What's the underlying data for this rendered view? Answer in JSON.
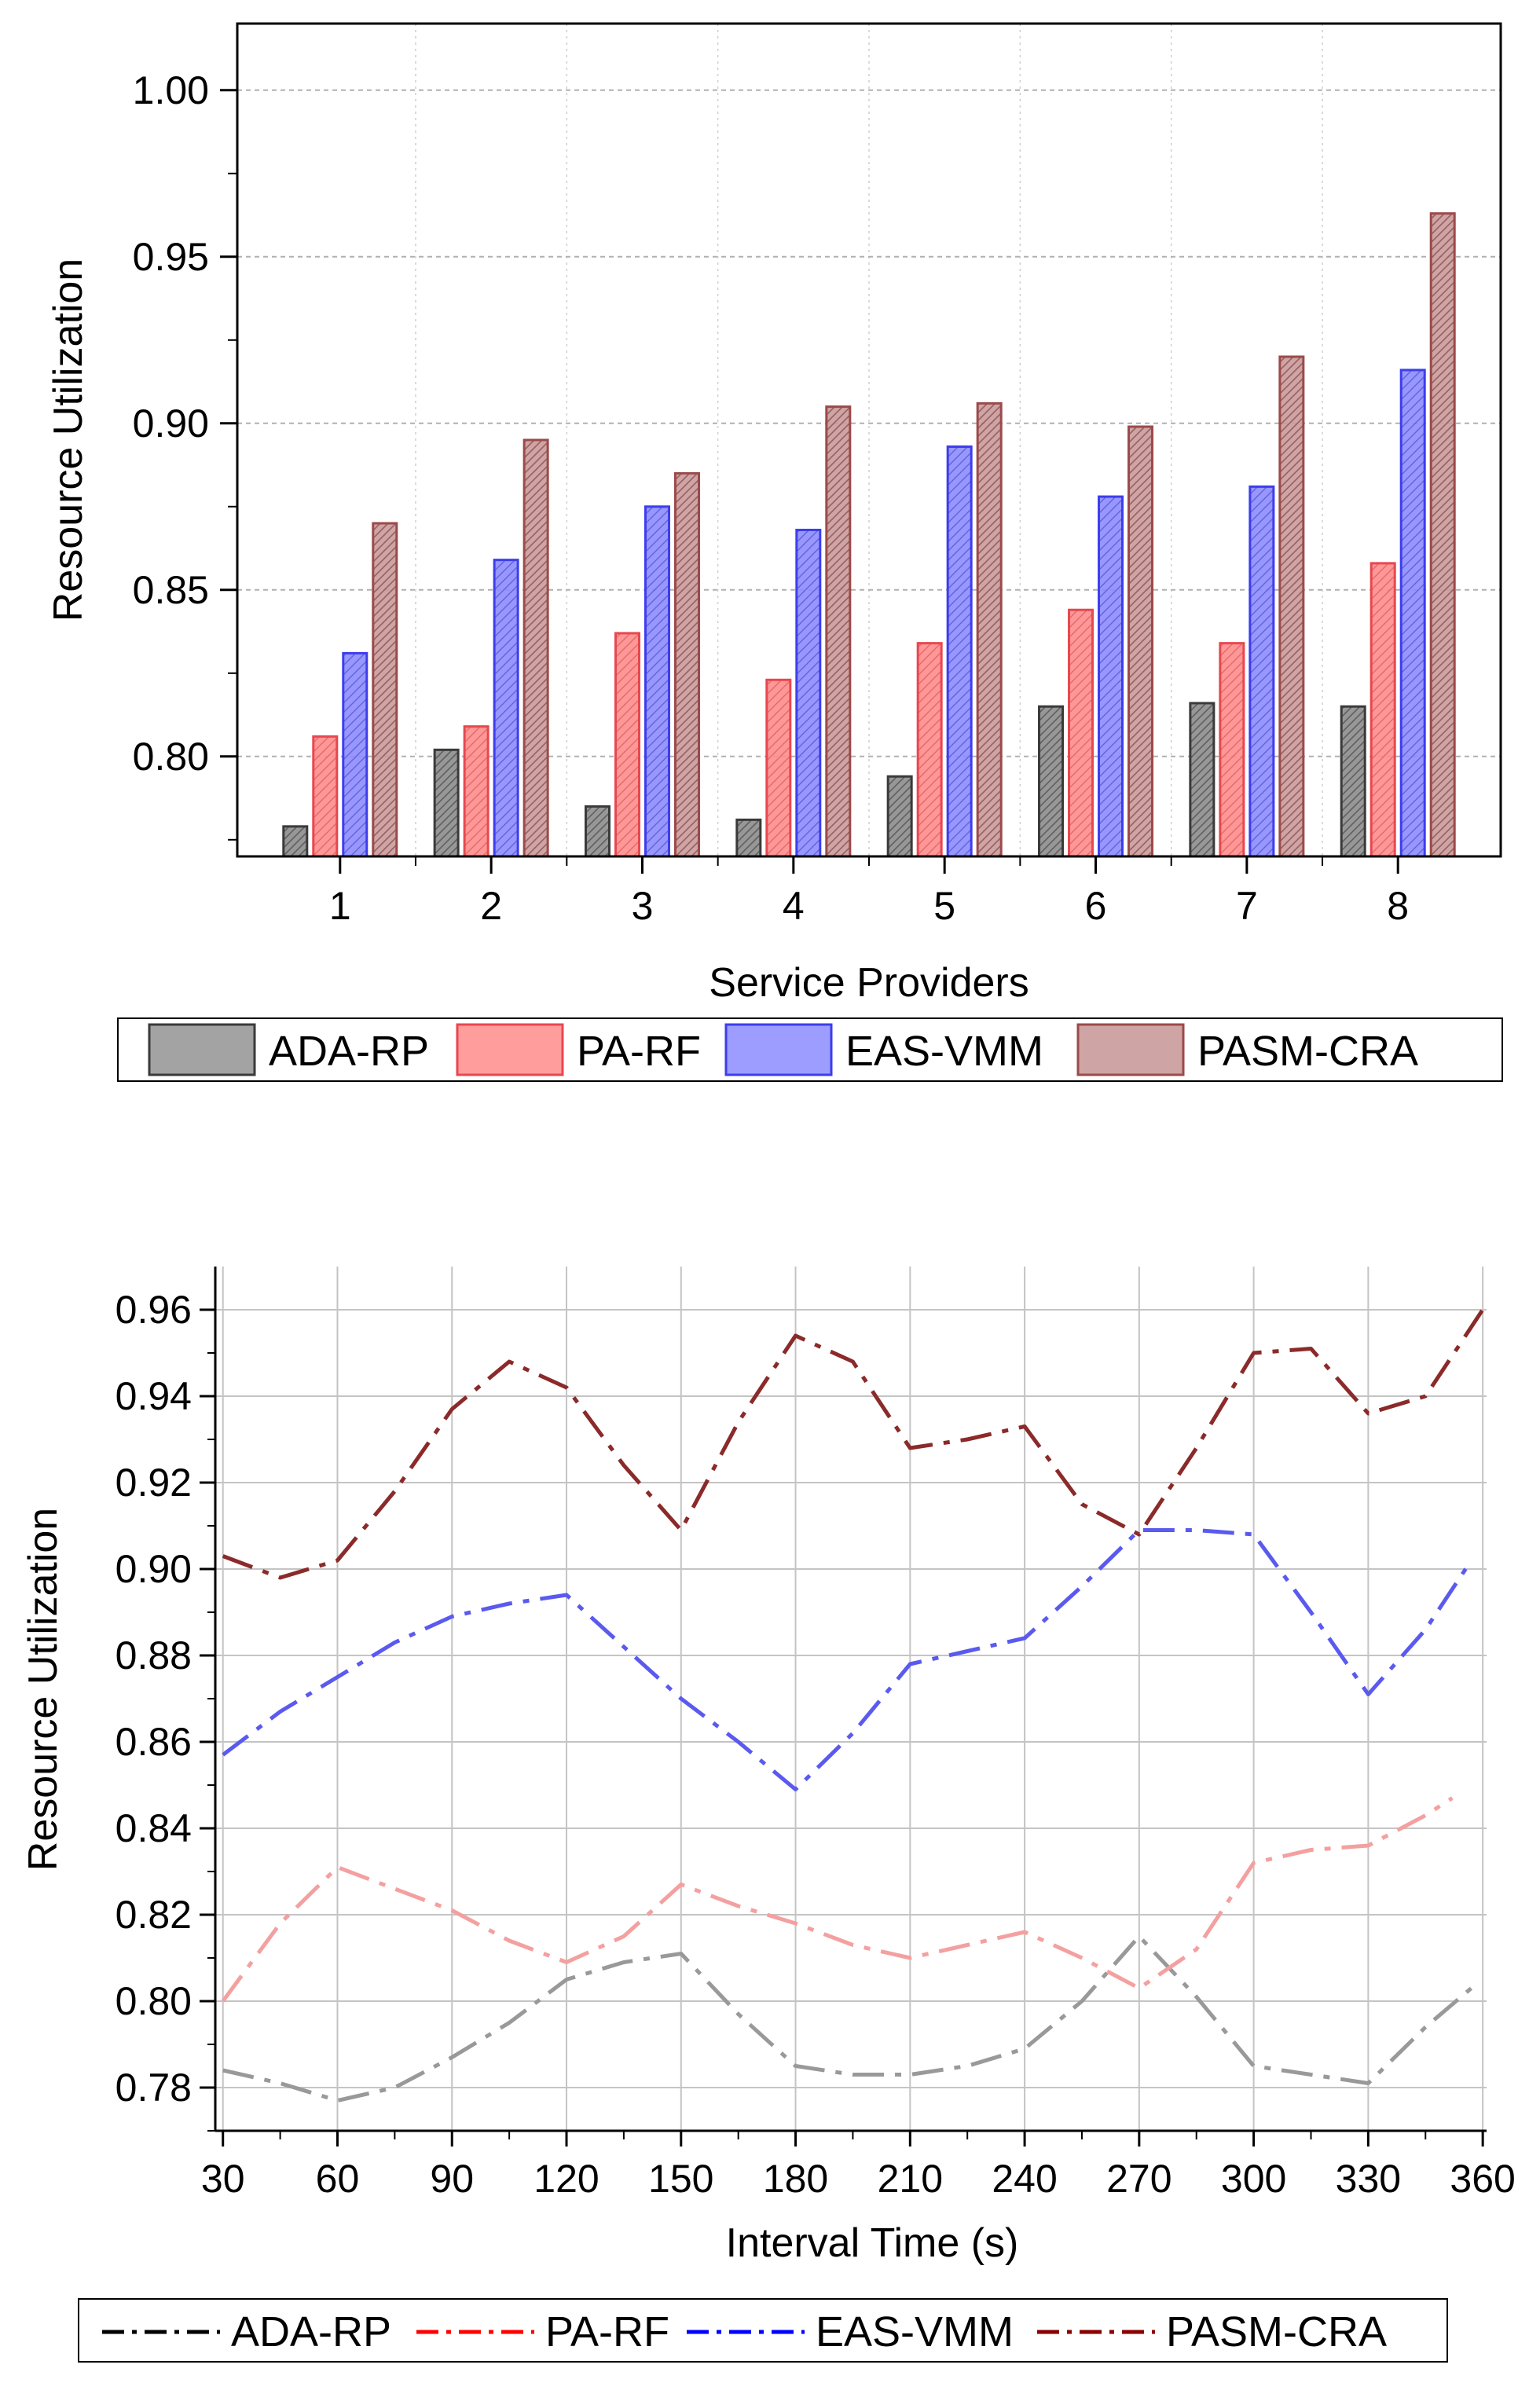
{
  "chart_data": [
    {
      "type": "bar",
      "title": "",
      "xlabel": "Service Providers",
      "ylabel": "Resource Utilization",
      "categories": [
        "1",
        "2",
        "3",
        "4",
        "5",
        "6",
        "7",
        "8"
      ],
      "ylim": [
        0.77,
        1.02
      ],
      "yticks": [
        "0.80",
        "0.85",
        "0.90",
        "0.95",
        "1.00"
      ],
      "grid": true,
      "legend_position": "bottom",
      "series": [
        {
          "name": "ADA-RP",
          "color": "#8c8c8c",
          "edge": "#3a3a3a",
          "values": [
            0.779,
            0.802,
            0.785,
            0.781,
            0.794,
            0.815,
            0.816,
            0.815
          ]
        },
        {
          "name": "PA-RF",
          "color": "#ff8c8c",
          "edge": "#e8474f",
          "values": [
            0.806,
            0.809,
            0.837,
            0.823,
            0.834,
            0.844,
            0.834,
            0.858
          ]
        },
        {
          "name": "EAS-VMM",
          "color": "#8c8cff",
          "edge": "#3d3dee",
          "values": [
            0.831,
            0.859,
            0.875,
            0.868,
            0.893,
            0.878,
            0.881,
            0.916
          ]
        },
        {
          "name": "PASM-CRA",
          "color": "#c99a9a",
          "edge": "#9c4a4a",
          "values": [
            0.87,
            0.895,
            0.885,
            0.905,
            0.906,
            0.899,
            0.92,
            0.963
          ]
        }
      ]
    },
    {
      "type": "line",
      "title": "",
      "xlabel": "Interval Time (s)",
      "ylabel": "Resource Utilization",
      "xticks": [
        "30",
        "60",
        "90",
        "120",
        "150",
        "180",
        "210",
        "240",
        "270",
        "300",
        "330",
        "360"
      ],
      "yticks": [
        "0.78",
        "0.80",
        "0.82",
        "0.84",
        "0.86",
        "0.88",
        "0.90",
        "0.92",
        "0.94",
        "0.96"
      ],
      "xlim": [
        28,
        361
      ],
      "ylim": [
        0.77,
        0.97
      ],
      "grid": true,
      "legend_position": "bottom",
      "series": [
        {
          "name": "ADA-RP",
          "color": "#999999",
          "legend_color": "#000000",
          "x": [
            30,
            45,
            60,
            75,
            90,
            105,
            120,
            135,
            150,
            165,
            180,
            195,
            210,
            225,
            240,
            255,
            270,
            285,
            300,
            315,
            330,
            345,
            357
          ],
          "y": [
            0.784,
            0.781,
            0.777,
            0.78,
            0.787,
            0.795,
            0.805,
            0.809,
            0.811,
            0.797,
            0.785,
            0.783,
            0.783,
            0.785,
            0.789,
            0.8,
            0.815,
            0.801,
            0.785,
            0.783,
            0.781,
            0.794,
            0.803
          ]
        },
        {
          "name": "PA-RF",
          "color": "#f4a0a0",
          "legend_color": "#ff0000",
          "x": [
            30,
            45,
            60,
            75,
            90,
            105,
            120,
            135,
            150,
            165,
            180,
            195,
            210,
            225,
            240,
            255,
            270,
            285,
            300,
            315,
            330,
            345,
            352
          ],
          "y": [
            0.8,
            0.818,
            0.831,
            0.826,
            0.821,
            0.814,
            0.809,
            0.815,
            0.827,
            0.822,
            0.818,
            0.813,
            0.81,
            0.813,
            0.816,
            0.81,
            0.803,
            0.812,
            0.832,
            0.835,
            0.836,
            0.843,
            0.847
          ]
        },
        {
          "name": "EAS-VMM",
          "color": "#5a5aef",
          "legend_color": "#0000ff",
          "x": [
            30,
            45,
            60,
            75,
            90,
            105,
            120,
            135,
            150,
            165,
            180,
            195,
            210,
            225,
            240,
            255,
            270,
            285,
            300,
            315,
            330,
            345,
            357
          ],
          "y": [
            0.857,
            0.867,
            0.875,
            0.883,
            0.889,
            0.892,
            0.894,
            0.882,
            0.87,
            0.86,
            0.849,
            0.862,
            0.878,
            0.881,
            0.884,
            0.896,
            0.909,
            0.909,
            0.908,
            0.89,
            0.871,
            0.886,
            0.902
          ]
        },
        {
          "name": "PASM-CRA",
          "color": "#8b2a2a",
          "legend_color": "#8b0000",
          "x": [
            30,
            45,
            60,
            75,
            90,
            105,
            120,
            135,
            150,
            165,
            180,
            195,
            210,
            225,
            240,
            255,
            270,
            285,
            300,
            315,
            330,
            345,
            360
          ],
          "y": [
            0.903,
            0.898,
            0.902,
            0.918,
            0.937,
            0.948,
            0.942,
            0.924,
            0.909,
            0.934,
            0.954,
            0.948,
            0.928,
            0.93,
            0.933,
            0.915,
            0.908,
            0.928,
            0.95,
            0.951,
            0.936,
            0.94,
            0.96
          ]
        }
      ]
    }
  ]
}
